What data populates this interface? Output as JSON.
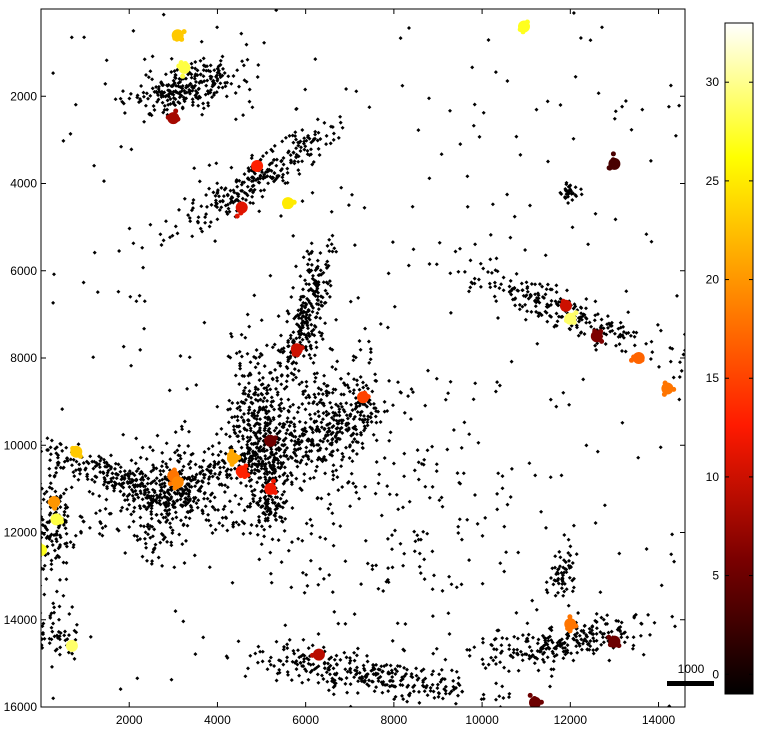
{
  "chart_data": {
    "type": "scatter",
    "title": "",
    "xlabel": "",
    "ylabel": "",
    "x_ticks": [
      "2000",
      "4000",
      "6000",
      "8000",
      "10000",
      "12000",
      "14000"
    ],
    "y_ticks": [
      "2000",
      "4000",
      "6000",
      "8000",
      "10000",
      "12000",
      "14000",
      "16000"
    ],
    "xlim": [
      0,
      14600
    ],
    "ylim": [
      16000,
      0
    ],
    "y_reversed": true,
    "grid": false,
    "point_color": "#000000",
    "colorbar": {
      "colormap": "hot",
      "range": [
        -1,
        33
      ],
      "ticks": [
        "0",
        "5",
        "10",
        "15",
        "20",
        "25",
        "30"
      ],
      "colors": [
        "#000000",
        "#7a0000",
        "#ff1a00",
        "#ff8c00",
        "#ffff00",
        "#ffffff"
      ]
    },
    "scale_bar": {
      "label": "1000",
      "length": 1000
    },
    "clusters": [
      {
        "cx": 3300,
        "cy": 1800,
        "sx": 250,
        "sy": 650,
        "angle": 75,
        "n": 260
      },
      {
        "cx": 5000,
        "cy": 3800,
        "sx": 1200,
        "sy": 200,
        "angle": -35,
        "n": 280
      },
      {
        "cx": 6000,
        "cy": 7000,
        "sx": 200,
        "sy": 850,
        "angle": 15,
        "n": 260
      },
      {
        "cx": 4400,
        "cy": 10400,
        "sx": 1900,
        "sy": 230,
        "angle": -20,
        "n": 380
      },
      {
        "cx": 1900,
        "cy": 10800,
        "sx": 1400,
        "sy": 200,
        "angle": 20,
        "n": 280
      },
      {
        "cx": 2750,
        "cy": 11200,
        "sx": 400,
        "sy": 700,
        "angle": 20,
        "n": 220
      },
      {
        "cx": 4900,
        "cy": 9300,
        "sx": 350,
        "sy": 850,
        "angle": 0,
        "n": 260
      },
      {
        "cx": 5900,
        "cy": 9700,
        "sx": 400,
        "sy": 1100,
        "angle": 30,
        "n": 240
      },
      {
        "cx": 5150,
        "cy": 11000,
        "sx": 220,
        "sy": 600,
        "angle": 0,
        "n": 140
      },
      {
        "cx": 7000,
        "cy": 9600,
        "sx": 280,
        "sy": 800,
        "angle": 20,
        "n": 140
      },
      {
        "cx": 7300,
        "cy": 15250,
        "sx": 1300,
        "sy": 230,
        "angle": 10,
        "n": 300
      },
      {
        "cx": 11900,
        "cy": 14500,
        "sx": 1100,
        "sy": 220,
        "angle": -10,
        "n": 260
      },
      {
        "cx": 11800,
        "cy": 6900,
        "sx": 1300,
        "sy": 200,
        "angle": 22,
        "n": 240
      },
      {
        "cx": 250,
        "cy": 11800,
        "sx": 250,
        "sy": 700,
        "angle": 0,
        "n": 160
      },
      {
        "cx": 11800,
        "cy": 12900,
        "sx": 150,
        "sy": 350,
        "angle": 0,
        "n": 60
      },
      {
        "cx": 250,
        "cy": 14300,
        "sx": 300,
        "sy": 250,
        "angle": 0,
        "n": 60
      },
      {
        "cx": 12000,
        "cy": 4200,
        "sx": 100,
        "sy": 100,
        "angle": 0,
        "n": 30
      }
    ],
    "hotspots": [
      {
        "x": 3000,
        "y": 2500,
        "v": 8
      },
      {
        "x": 4550,
        "y": 4550,
        "v": 11
      },
      {
        "x": 4900,
        "y": 3600,
        "v": 13
      },
      {
        "x": 5600,
        "y": 4450,
        "v": 25
      },
      {
        "x": 3250,
        "y": 1350,
        "v": 28
      },
      {
        "x": 3100,
        "y": 600,
        "v": 23
      },
      {
        "x": 5800,
        "y": 7800,
        "v": 10
      },
      {
        "x": 7300,
        "y": 8900,
        "v": 15
      },
      {
        "x": 3000,
        "y": 10700,
        "v": 18
      },
      {
        "x": 3100,
        "y": 10850,
        "v": 19
      },
      {
        "x": 4350,
        "y": 10300,
        "v": 21
      },
      {
        "x": 4550,
        "y": 10600,
        "v": 13
      },
      {
        "x": 5200,
        "y": 9900,
        "v": 5
      },
      {
        "x": 5200,
        "y": 11000,
        "v": 12
      },
      {
        "x": 800,
        "y": 10150,
        "v": 23
      },
      {
        "x": 300,
        "y": 11300,
        "v": 20
      },
      {
        "x": 350,
        "y": 11700,
        "v": 28
      },
      {
        "x": 0,
        "y": 12400,
        "v": 27
      },
      {
        "x": 700,
        "y": 14600,
        "v": 29
      },
      {
        "x": 6300,
        "y": 14800,
        "v": 9
      },
      {
        "x": 11200,
        "y": 15900,
        "v": 5
      },
      {
        "x": 12000,
        "y": 14100,
        "v": 18
      },
      {
        "x": 13000,
        "y": 14500,
        "v": 5
      },
      {
        "x": 13000,
        "y": 3550,
        "v": 3
      },
      {
        "x": 12000,
        "y": 7100,
        "v": 29
      },
      {
        "x": 12600,
        "y": 7500,
        "v": 6
      },
      {
        "x": 11900,
        "y": 6800,
        "v": 10
      },
      {
        "x": 13550,
        "y": 8000,
        "v": 17
      },
      {
        "x": 10950,
        "y": 400,
        "v": 27
      },
      {
        "x": 14200,
        "y": 8700,
        "v": 18
      }
    ]
  }
}
